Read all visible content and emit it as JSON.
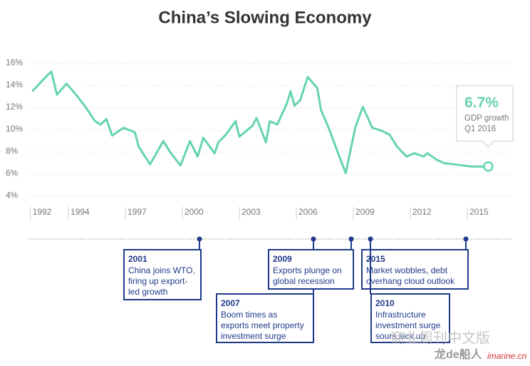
{
  "chart_data": {
    "type": "line",
    "title": "China’s Slowing Economy",
    "series": [
      {
        "name": "GDP growth",
        "color": "#66d4ae",
        "x": [
          1992.1,
          1992.7,
          1993.1,
          1993.4,
          1993.9,
          1994.4,
          1994.9,
          1995.4,
          1995.7,
          1996.0,
          1996.3,
          1996.9,
          1997.5,
          1997.7,
          1998.3,
          1999.0,
          1999.4,
          1999.9,
          2000.4,
          2000.8,
          2001.1,
          2001.7,
          2001.9,
          2002.3,
          2002.8,
          2003.0,
          2003.7,
          2003.9,
          2004.4,
          2004.6,
          2005.0,
          2005.5,
          2005.7,
          2005.9,
          2006.2,
          2006.6,
          2007.1,
          2007.3,
          2007.7,
          2008.2,
          2008.6,
          2009.1,
          2009.5,
          2010.0,
          2010.4,
          2010.9,
          2011.3,
          2011.8,
          2012.2,
          2012.7,
          2012.9,
          2013.4,
          2013.8,
          2014.3,
          2015.2,
          2016.1
        ],
        "values": [
          13.5,
          14.6,
          15.3,
          13.2,
          14.2,
          13.2,
          12.1,
          10.8,
          10.5,
          11.0,
          9.5,
          10.2,
          9.8,
          8.5,
          6.9,
          9.0,
          7.9,
          6.8,
          9.0,
          7.6,
          9.3,
          7.9,
          8.9,
          9.6,
          10.8,
          9.4,
          10.4,
          11.1,
          8.9,
          10.8,
          10.5,
          12.4,
          13.5,
          12.2,
          12.7,
          14.8,
          13.8,
          11.8,
          10.2,
          7.9,
          6.1,
          10.2,
          12.1,
          10.2,
          10.0,
          9.6,
          8.5,
          7.6,
          7.9,
          7.6,
          7.9,
          7.3,
          7.0,
          6.9,
          6.7,
          6.7
        ]
      }
    ],
    "xlim": [
      1991.9,
      2017.4
    ],
    "xticks": [
      1992,
      1994,
      1997,
      2000,
      2003,
      2006,
      2009,
      2012,
      2015
    ],
    "ylim": [
      3.5,
      16.6
    ],
    "yticks": [
      {
        "value": 4,
        "label": "4%"
      },
      {
        "value": 6,
        "label": "6%"
      },
      {
        "value": 8,
        "label": "8%"
      },
      {
        "value": 10,
        "label": "10%"
      },
      {
        "value": 12,
        "label": "12%"
      },
      {
        "value": 14,
        "label": "14%"
      },
      {
        "value": 16,
        "label": "16%"
      }
    ],
    "grid": true,
    "callout": {
      "value_label": "6.7%",
      "lines": [
        "GDP growth",
        "Q1 2016"
      ]
    },
    "events": [
      {
        "year": "2001",
        "lines": [
          "China joins WTO,",
          "firing up export-",
          "led growth"
        ]
      },
      {
        "year": "2007",
        "lines": [
          "Boom times as",
          "exports meet property",
          "investment surge"
        ]
      },
      {
        "year": "2009",
        "lines": [
          "Exports plunge on",
          "global recession"
        ]
      },
      {
        "year": "2015",
        "lines": [
          "Market wobbles, debt",
          "overhang cloud outlook"
        ]
      },
      {
        "year": "2010",
        "lines": [
          "Infrastructure",
          "investment surge",
          "sours,sick up"
        ]
      }
    ],
    "watermark": [
      "商业周刊中文版",
      "龙de船人",
      "imarine.cn"
    ]
  }
}
